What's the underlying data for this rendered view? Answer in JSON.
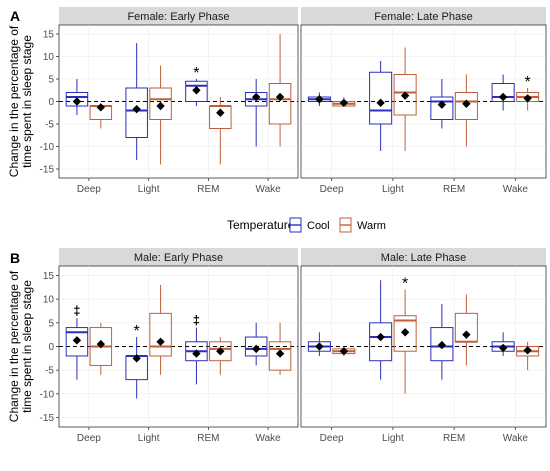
{
  "chart_data": {
    "type": "box",
    "panel_letters": [
      "A",
      "B"
    ],
    "ylabel_lines": [
      "Change in the percentage of",
      "time spent in sleep stage"
    ],
    "legend": {
      "title": "Temperature",
      "placement": "middle-center",
      "entries": [
        {
          "name": "Cool",
          "color": "#2b2fbf"
        },
        {
          "name": "Warm",
          "color": "#c0603a"
        }
      ]
    },
    "categories": [
      "Deep",
      "Light",
      "REM",
      "Wake"
    ],
    "ylim": [
      -17,
      17
    ],
    "yticks": [
      -15,
      -10,
      -5,
      0,
      5,
      10,
      15
    ],
    "reference_line": 0,
    "panels": [
      {
        "row": "A",
        "title": "Female: Early Phase",
        "boxes": [
          {
            "category": "Deep",
            "group": "Cool",
            "min": -3,
            "q1": -1,
            "median": 1,
            "q3": 2,
            "max": 5,
            "mean": 0,
            "annotation": ""
          },
          {
            "category": "Deep",
            "group": "Warm",
            "min": -6,
            "q1": -4,
            "median": -1,
            "q3": -1,
            "max": -1,
            "mean": -1.3,
            "annotation": ""
          },
          {
            "category": "Light",
            "group": "Cool",
            "min": -13,
            "q1": -8,
            "median": -2,
            "q3": 3,
            "max": 13,
            "mean": -1.7,
            "annotation": ""
          },
          {
            "category": "Light",
            "group": "Warm",
            "min": -14,
            "q1": -4,
            "median": 0.5,
            "q3": 3,
            "max": 8,
            "mean": -1,
            "annotation": ""
          },
          {
            "category": "REM",
            "group": "Cool",
            "min": -1,
            "q1": 0,
            "median": 3.5,
            "q3": 4.5,
            "max": 5,
            "mean": 2.5,
            "annotation": "*"
          },
          {
            "category": "REM",
            "group": "Warm",
            "min": -14,
            "q1": -6,
            "median": -1,
            "q3": -1,
            "max": 1,
            "mean": -2.5,
            "annotation": ""
          },
          {
            "category": "Wake",
            "group": "Cool",
            "min": -10,
            "q1": -1,
            "median": 0.5,
            "q3": 2,
            "max": 5,
            "mean": 1,
            "annotation": ""
          },
          {
            "category": "Wake",
            "group": "Warm",
            "min": -10,
            "q1": -5,
            "median": 0.5,
            "q3": 4,
            "max": 15,
            "mean": 1,
            "annotation": ""
          }
        ]
      },
      {
        "row": "A",
        "title": "Female: Late Phase",
        "boxes": [
          {
            "category": "Deep",
            "group": "Cool",
            "min": -1,
            "q1": 0,
            "median": 0.5,
            "q3": 1,
            "max": 2,
            "mean": 0.5,
            "annotation": ""
          },
          {
            "category": "Deep",
            "group": "Warm",
            "min": -1,
            "q1": -1,
            "median": -0.5,
            "q3": 0,
            "max": 1,
            "mean": -0.3,
            "annotation": ""
          },
          {
            "category": "Light",
            "group": "Cool",
            "min": -11,
            "q1": -5,
            "median": -2,
            "q3": 6.5,
            "max": 9,
            "mean": -0.3,
            "annotation": ""
          },
          {
            "category": "Light",
            "group": "Warm",
            "min": -11,
            "q1": -3,
            "median": 2,
            "q3": 6,
            "max": 12,
            "mean": 1.3,
            "annotation": ""
          },
          {
            "category": "REM",
            "group": "Cool",
            "min": -6,
            "q1": -4,
            "median": 0,
            "q3": 1,
            "max": 5,
            "mean": -0.7,
            "annotation": ""
          },
          {
            "category": "REM",
            "group": "Warm",
            "min": -10,
            "q1": -4,
            "median": 0,
            "q3": 2,
            "max": 6,
            "mean": -0.5,
            "annotation": ""
          },
          {
            "category": "Wake",
            "group": "Cool",
            "min": -2,
            "q1": 0,
            "median": 1,
            "q3": 4,
            "max": 6,
            "mean": 1,
            "annotation": ""
          },
          {
            "category": "Wake",
            "group": "Warm",
            "min": -2,
            "q1": 0,
            "median": 1,
            "q3": 2,
            "max": 3,
            "mean": 0.7,
            "annotation": "*"
          }
        ]
      },
      {
        "row": "B",
        "title": "Male: Early Phase",
        "boxes": [
          {
            "category": "Deep",
            "group": "Cool",
            "min": -7,
            "q1": -2,
            "median": 3,
            "q3": 4,
            "max": 6,
            "mean": 1.3,
            "annotation": "‡"
          },
          {
            "category": "Deep",
            "group": "Warm",
            "min": -6,
            "q1": -4,
            "median": 0,
            "q3": 4,
            "max": 5,
            "mean": 0.5,
            "annotation": ""
          },
          {
            "category": "Light",
            "group": "Cool",
            "min": -11,
            "q1": -7,
            "median": -2,
            "q3": -2,
            "max": 2,
            "mean": -2.5,
            "annotation": "*"
          },
          {
            "category": "Light",
            "group": "Warm",
            "min": -6,
            "q1": -2,
            "median": 0,
            "q3": 7,
            "max": 13,
            "mean": 1,
            "annotation": ""
          },
          {
            "category": "REM",
            "group": "Cool",
            "min": -8,
            "q1": -3,
            "median": -1,
            "q3": 1,
            "max": 4,
            "mean": -1.5,
            "annotation": "‡"
          },
          {
            "category": "REM",
            "group": "Warm",
            "min": -6,
            "q1": -3,
            "median": -0.5,
            "q3": 1,
            "max": 2,
            "mean": -1,
            "annotation": ""
          },
          {
            "category": "Wake",
            "group": "Cool",
            "min": -4,
            "q1": -2,
            "median": -0.5,
            "q3": 2,
            "max": 5,
            "mean": -0.5,
            "annotation": ""
          },
          {
            "category": "Wake",
            "group": "Warm",
            "min": -6,
            "q1": -5,
            "median": -0.5,
            "q3": 1,
            "max": 5,
            "mean": -1.5,
            "annotation": ""
          }
        ]
      },
      {
        "row": "B",
        "title": "Male: Late Phase",
        "boxes": [
          {
            "category": "Deep",
            "group": "Cool",
            "min": -2,
            "q1": -1,
            "median": 0,
            "q3": 1,
            "max": 3,
            "mean": 0,
            "annotation": ""
          },
          {
            "category": "Deep",
            "group": "Warm",
            "min": -2,
            "q1": -1.5,
            "median": -1,
            "q3": -0.5,
            "max": 0,
            "mean": -1,
            "annotation": ""
          },
          {
            "category": "Light",
            "group": "Cool",
            "min": -7,
            "q1": -3,
            "median": 2,
            "q3": 5,
            "max": 14,
            "mean": 2,
            "annotation": ""
          },
          {
            "category": "Light",
            "group": "Warm",
            "min": -10,
            "q1": -1,
            "median": 5.5,
            "q3": 6.5,
            "max": 12,
            "mean": 3,
            "annotation": "*"
          },
          {
            "category": "REM",
            "group": "Cool",
            "min": -7,
            "q1": -3,
            "median": 0,
            "q3": 4,
            "max": 9,
            "mean": 0.3,
            "annotation": ""
          },
          {
            "category": "REM",
            "group": "Warm",
            "min": -4,
            "q1": 1,
            "median": 1,
            "q3": 7,
            "max": 11,
            "mean": 2.5,
            "annotation": ""
          },
          {
            "category": "Wake",
            "group": "Cool",
            "min": -2,
            "q1": -1,
            "median": 0,
            "q3": 1,
            "max": 3,
            "mean": -0.3,
            "annotation": ""
          },
          {
            "category": "Wake",
            "group": "Warm",
            "min": -5,
            "q1": -2,
            "median": -1,
            "q3": 0,
            "max": 1,
            "mean": -0.8,
            "annotation": ""
          }
        ]
      }
    ]
  }
}
